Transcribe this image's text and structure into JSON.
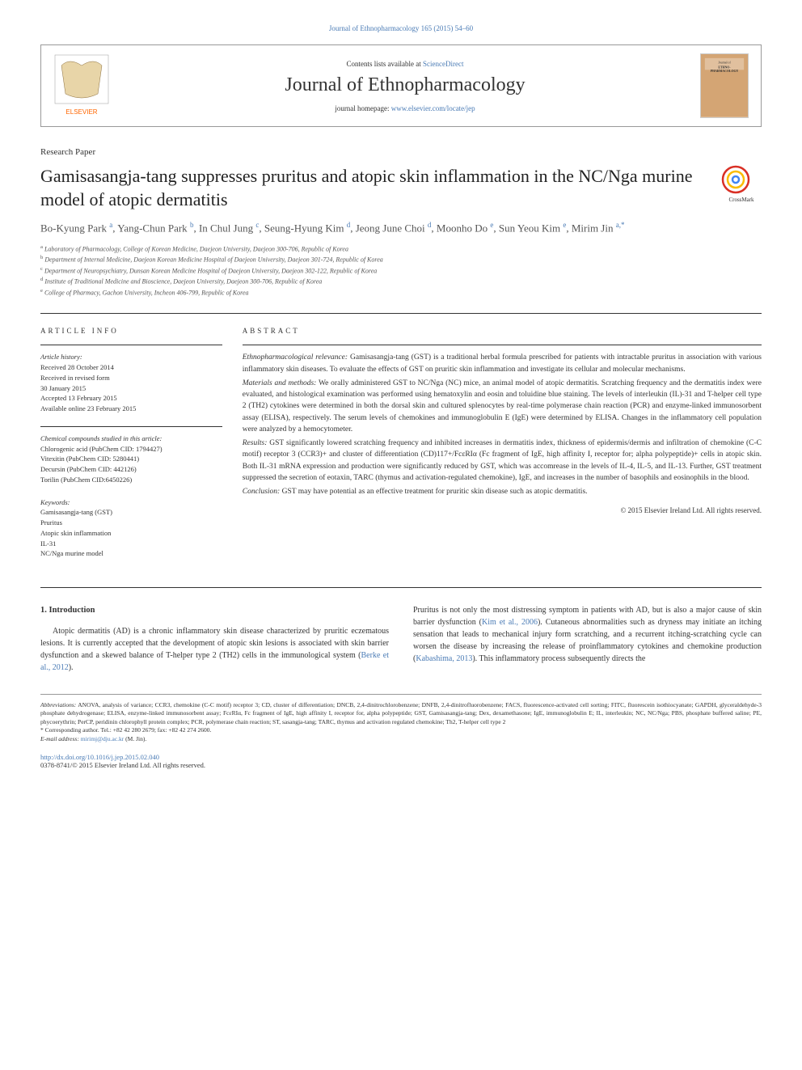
{
  "top_link": "Journal of Ethnopharmacology 165 (2015) 54–60",
  "header": {
    "contents_prefix": "Contents lists available at ",
    "contents_link": "ScienceDirect",
    "journal_title": "Journal of Ethnopharmacology",
    "homepage_prefix": "journal homepage: ",
    "homepage_link": "www.elsevier.com/locate/jep",
    "elsevier_color": "#ff6600",
    "cover_title_small": "Journal of ETHNO-PHARMACOLOGY"
  },
  "crossmark_label": "CrossMark",
  "paper_type": "Research Paper",
  "title": "Gamisasangja-tang suppresses pruritus and atopic skin inflammation in the NC/Nga murine model of atopic dermatitis",
  "authors_html": "Bo-Kyung Park <sup>a</sup>, Yang-Chun Park <sup>b</sup>, In Chul Jung <sup>c</sup>, Seung-Hyung Kim <sup>d</sup>, Jeong June Choi <sup>d</sup>, Moonho Do <sup>e</sup>, Sun Yeou Kim <sup>e</sup>, Mirim Jin <sup>a,*</sup>",
  "affiliations": [
    "a Laboratory of Pharmacology, College of Korean Medicine, Daejeon University, Daejeon 300-706, Republic of Korea",
    "b Department of Internal Medicine, Daejeon Korean Medicine Hospital of Daejeon University, Daejeon 301-724, Republic of Korea",
    "c Department of Neuropsychiatry, Dunsan Korean Medicine Hospital of Daejeon University, Daejeon 302-122, Republic of Korea",
    "d Institute of Traditional Medicine and Bioscience, Daejeon University, Daejeon 300-706, Republic of Korea",
    "e College of Pharmacy, Gachon University, Incheon 406-799, Republic of Korea"
  ],
  "article_info": {
    "label": "article info",
    "history_title": "Article history:",
    "history": [
      "Received 28 October 2014",
      "Received in revised form",
      "30 January 2015",
      "Accepted 13 February 2015",
      "Available online 23 February 2015"
    ],
    "compounds_title": "Chemical compounds studied in this article:",
    "compounds": [
      "Chlorogenic acid (PubChem CID: 1794427)",
      "Vitexitin (PubChem CID: 5280441)",
      "Decursin (PubChem CID: 442126)",
      "Torilin (PubChem CID:6450226)"
    ],
    "keywords_title": "Keywords:",
    "keywords": [
      "Gamisasangja-tang (GST)",
      "Pruritus",
      "Atopic skin inflammation",
      "IL-31",
      "NC/Nga murine model"
    ]
  },
  "abstract": {
    "label": "abstract",
    "paragraphs": [
      {
        "label": "Ethnopharmacological relevance:",
        "text": " Gamisasangja-tang (GST) is a traditional herbal formula prescribed for patients with intractable pruritus in association with various inflammatory skin diseases. To evaluate the effects of GST on pruritic skin inflammation and investigate its cellular and molecular mechanisms."
      },
      {
        "label": "Materials and methods:",
        "text": " We orally administered GST to NC/Nga (NC) mice, an animal model of atopic dermatitis. Scratching frequency and the dermatitis index were evaluated, and histological examination was performed using hematoxylin and eosin and toluidine blue staining. The levels of interleukin (IL)-31 and T-helper cell type 2 (TH2) cytokines were determined in both the dorsal skin and cultured splenocytes by real-time polymerase chain reaction (PCR) and enzyme-linked immunosorbent assay (ELISA), respectively. The serum levels of chemokines and immunoglobulin E (IgE) were determined by ELISA. Changes in the inflammatory cell population were analyzed by a hemocytometer."
      },
      {
        "label": "Results:",
        "text": " GST significantly lowered scratching frequency and inhibited increases in dermatitis index, thickness of epidermis/dermis and infiltration of chemokine (C-C motif) receptor 3 (CCR3)+ and cluster of differentiation (CD)117+/FcεRIα (Fc fragment of IgE, high affinity I, receptor for; alpha polypeptide)+ cells in atopic skin. Both IL-31 mRNA expression and production were significantly reduced by GST, which was accomrease in the levels of IL-4, IL-5, and IL-13. Further, GST treatment suppressed the secretion of eotaxin, TARC (thymus and activation-regulated chemokine), IgE, and increases in the number of basophils and eosinophils in the blood."
      },
      {
        "label": "Conclusion:",
        "text": " GST may have potential as an effective treatment for pruritic skin disease such as atopic dermatitis."
      }
    ],
    "copyright": "© 2015 Elsevier Ireland Ltd. All rights reserved."
  },
  "body": {
    "heading": "1. Introduction",
    "col1": "Atopic dermatitis (AD) is a chronic inflammatory skin disease characterized by pruritic eczematous lesions. It is currently accepted that the development of atopic skin lesions is associated with skin barrier dysfunction and a skewed balance of T-helper type 2 (TH2) cells in the immunological system (",
    "col1_link": "Berke et al., 2012",
    "col1_after": ").",
    "col2_a": "Pruritus is not only the most distressing symptom in patients with AD, but is also a major cause of skin barrier dysfunction (",
    "col2_link1": "Kim et al., 2006",
    "col2_b": "). Cutaneous abnormalities such as dryness may initiate an itching sensation that leads to mechanical injury form scratching, and a recurrent itching-scratching cycle can worsen the disease by increasing the release of proinflammatory cytokines and chemokine production (",
    "col2_link2": "Kabashima, 2013",
    "col2_c": "). This inflammatory process subsequently directs the"
  },
  "footnotes": {
    "abbrev_label": "Abbreviations:",
    "abbrev": " ANOVA, analysis of variance; CCR3, chemokine (C-C motif) receptor 3; CD, cluster of differentiation; DNCB, 2,4-dinitrochlorobenzene; DNFB, 2,4-dinitrofluorobenzene; FACS, fluorescence-activated cell sorting; FITC, fluorescein isothiocyanate; GAPDH, glyceraldehyde-3 phosphate dehydrogenase; ELISA, enzyme-linked immunosorbent assay; FcεRIα, Fc fragment of IgE, high affinity I, receptor for, alpha polypeptide; GST, Gamisasangja-tang; Dex, dexamethasone; IgE, immunoglobulin E; IL, interleukin; NC, NC/Nga; PBS, phosphate buffered saline; PE, phycoerythrin; PerCP, peridinin chlorophyll protein complex; PCR, polymerase chain reaction; ST, sasangja-tang; TARC, thymus and activation regulated chemokine; Th2, T-helper cell type 2",
    "corr": "* Corresponding author. Tel.: +82 42 280 2679; fax: +82 42 274 2600.",
    "email_label": "E-mail address: ",
    "email": "mirimj@dju.ac.kr",
    "email_suffix": " (M. Jin)."
  },
  "doi": {
    "link": "http://dx.doi.org/10.1016/j.jep.2015.02.040",
    "issn": "0378-8741/© 2015 Elsevier Ireland Ltd. All rights reserved."
  }
}
